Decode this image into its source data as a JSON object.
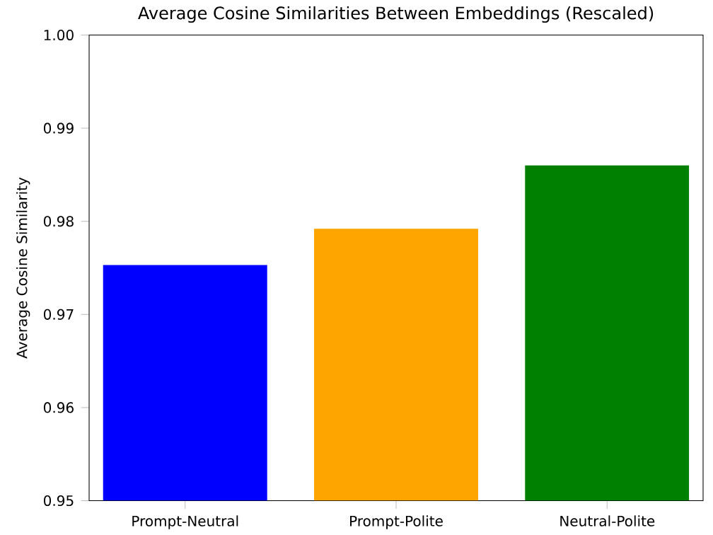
{
  "chart_data": {
    "type": "bar",
    "title": "Average Cosine Similarities Between Embeddings (Rescaled)",
    "ylabel": "Average Cosine Similarity",
    "categories": [
      "Prompt-Neutral",
      "Prompt-Polite",
      "Neutral-Polite"
    ],
    "values": [
      0.9753,
      0.9792,
      0.986
    ],
    "colors": [
      "#0000ff",
      "#ffa500",
      "#008000"
    ],
    "ylim": [
      0.95,
      1.0
    ],
    "yticks": [
      0.95,
      0.96,
      0.97,
      0.98,
      0.99,
      {
        "value": 1.0,
        "label": "1.00"
      }
    ],
    "grid": false
  }
}
